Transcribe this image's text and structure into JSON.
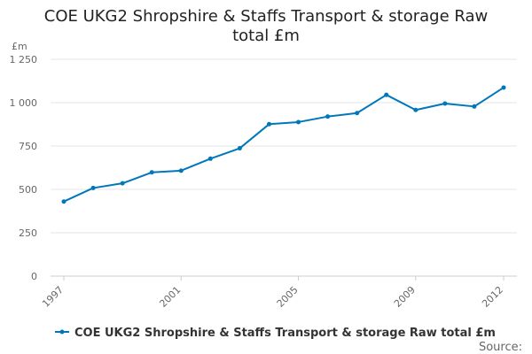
{
  "chart_data": {
    "type": "line",
    "title_lines": [
      "COE UKG2 Shropshire & Staffs Transport & storage Raw",
      "total £m"
    ],
    "y_unit": "£m",
    "x": [
      1997,
      1998,
      1999,
      2000,
      2001,
      2002,
      2003,
      2004,
      2005,
      2006,
      2007,
      2008,
      2009,
      2010,
      2011,
      2012
    ],
    "x_tick_labels": [
      "1997",
      "2001",
      "2005",
      "2009",
      "2012"
    ],
    "y_ticks": [
      0,
      250,
      500,
      750,
      1000,
      1250
    ],
    "y_tick_labels": [
      "0",
      "250",
      "500",
      "750",
      "1 000",
      "1 250"
    ],
    "ylim": [
      0,
      1250
    ],
    "grid": true,
    "legend_position": "bottom",
    "series": [
      {
        "name": "COE UKG2 Shropshire & Staffs Transport & storage Raw total £m",
        "color": "#0077bb",
        "values": [
          430,
          508,
          535,
          598,
          608,
          677,
          737,
          876,
          888,
          920,
          940,
          1045,
          958,
          995,
          978,
          1087
        ]
      }
    ]
  },
  "source_label": "Source:"
}
